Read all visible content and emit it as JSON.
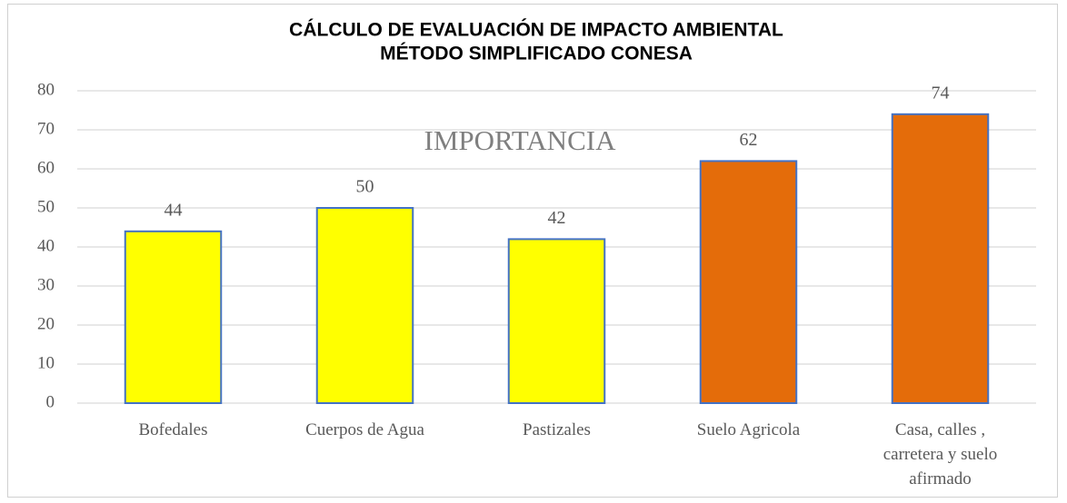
{
  "chart_data": {
    "type": "bar",
    "title": [
      "CÁLCULO DE EVALUACIÓN DE IMPACTO AMBIENTAL",
      "MÉTODO SIMPLIFICADO CONESA"
    ],
    "annotation": "IMPORTANCIA",
    "categories": [
      "Bofedales",
      "Cuerpos de Agua",
      "Pastizales",
      "Suelo Agricola",
      "Casa, calles , carretera y suelo afirmado"
    ],
    "values": [
      44,
      50,
      42,
      62,
      74
    ],
    "colors": [
      "#ffff00",
      "#ffff00",
      "#ffff00",
      "#e46c0a",
      "#e46c0a"
    ],
    "edge_color": "#4472c4",
    "ylim": [
      0,
      80
    ],
    "yticks": [
      0,
      10,
      20,
      30,
      40,
      50,
      60,
      70,
      80
    ],
    "grid": true
  }
}
